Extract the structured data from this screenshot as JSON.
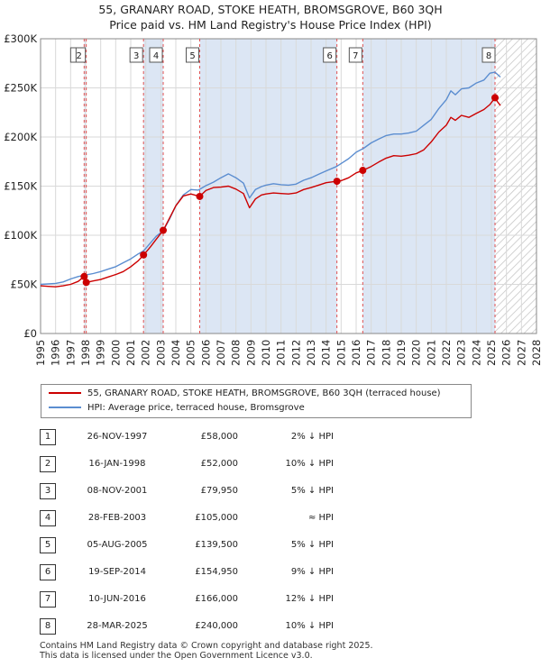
{
  "chart_data": {
    "type": "line",
    "title": "55, GRANARY ROAD, STOKE HEATH, BROMSGROVE, B60 3QH",
    "subtitle": "Price paid vs. HM Land Registry's House Price Index (HPI)",
    "xlim": [
      1995,
      2028
    ],
    "ylim": [
      0,
      300000
    ],
    "x_ticks": [
      1995,
      1996,
      1997,
      1998,
      1999,
      2000,
      2001,
      2002,
      2003,
      2004,
      2005,
      2006,
      2007,
      2008,
      2009,
      2010,
      2011,
      2012,
      2013,
      2014,
      2015,
      2016,
      2017,
      2018,
      2019,
      2020,
      2021,
      2022,
      2023,
      2024,
      2025,
      2026,
      2027,
      2028
    ],
    "y_ticks": [
      {
        "value": 0,
        "label": "£0"
      },
      {
        "value": 50000,
        "label": "£50K"
      },
      {
        "value": 100000,
        "label": "£100K"
      },
      {
        "value": 150000,
        "label": "£150K"
      },
      {
        "value": 200000,
        "label": "£200K"
      },
      {
        "value": 250000,
        "label": "£250K"
      },
      {
        "value": 300000,
        "label": "£300K"
      }
    ],
    "forecast_start": 2025.25,
    "series": [
      {
        "name": "55, GRANARY ROAD, STOKE HEATH, BROMSGROVE, B60 3QH (terraced house)",
        "color": "#cc0000",
        "x": [
          1995.0,
          1995.5,
          1996.0,
          1996.5,
          1997.0,
          1997.5,
          1997.9,
          1998.04,
          1998.5,
          1999.0,
          1999.5,
          2000.0,
          2000.5,
          2001.0,
          2001.5,
          2001.85,
          2002.3,
          2002.7,
          2003.16,
          2003.6,
          2004.0,
          2004.5,
          2005.0,
          2005.59,
          2006.0,
          2006.5,
          2007.0,
          2007.5,
          2008.0,
          2008.5,
          2008.9,
          2009.3,
          2009.7,
          2010.0,
          2010.5,
          2011.0,
          2011.5,
          2012.0,
          2012.5,
          2013.0,
          2013.5,
          2014.0,
          2014.72,
          2015.0,
          2015.5,
          2016.0,
          2016.44,
          2017.0,
          2017.5,
          2018.0,
          2018.5,
          2019.0,
          2019.5,
          2020.0,
          2020.5,
          2021.0,
          2021.5,
          2022.0,
          2022.3,
          2022.6,
          2023.0,
          2023.5,
          2024.0,
          2024.5,
          2024.9,
          2025.24,
          2025.4,
          2025.6
        ],
        "y": [
          48500,
          48000,
          47500,
          48500,
          50000,
          53000,
          58000,
          52000,
          53500,
          55000,
          57500,
          60000,
          63000,
          68000,
          74000,
          79950,
          88000,
          96000,
          105000,
          118000,
          130000,
          140000,
          142000,
          139500,
          145500,
          148500,
          149000,
          150000,
          147000,
          142500,
          128000,
          137000,
          141000,
          142000,
          143000,
          142500,
          142000,
          143000,
          146500,
          148500,
          151000,
          153500,
          154950,
          155500,
          158500,
          163500,
          166000,
          170000,
          174500,
          178500,
          181000,
          180500,
          181500,
          183000,
          187000,
          195000,
          205000,
          212000,
          220000,
          217000,
          222000,
          220000,
          224000,
          228000,
          233000,
          240000,
          236000,
          232000
        ]
      },
      {
        "name": "HPI: Average price, terraced house, Bromsgrove",
        "color": "#5b8dd0",
        "x": [
          1995.0,
          1995.5,
          1996.0,
          1996.5,
          1997.0,
          1997.5,
          1998.0,
          1998.5,
          1999.0,
          1999.5,
          2000.0,
          2000.5,
          2001.0,
          2001.5,
          2001.85,
          2002.3,
          2002.7,
          2003.16,
          2003.6,
          2004.0,
          2004.5,
          2005.0,
          2005.5,
          2006.0,
          2006.5,
          2007.0,
          2007.5,
          2008.0,
          2008.5,
          2008.9,
          2009.3,
          2009.7,
          2010.0,
          2010.5,
          2011.0,
          2011.5,
          2012.0,
          2012.5,
          2013.0,
          2013.5,
          2014.0,
          2014.7,
          2015.0,
          2015.5,
          2016.0,
          2016.5,
          2017.0,
          2017.5,
          2018.0,
          2018.5,
          2019.0,
          2019.5,
          2020.0,
          2020.5,
          2021.0,
          2021.5,
          2022.0,
          2022.3,
          2022.6,
          2023.0,
          2023.5,
          2024.0,
          2024.5,
          2024.9,
          2025.24,
          2025.6
        ],
        "y": [
          50000,
          50500,
          51000,
          52500,
          55500,
          58000,
          59500,
          61000,
          63000,
          65500,
          68000,
          72000,
          76000,
          81000,
          84000,
          92000,
          99000,
          104500,
          117000,
          130000,
          141000,
          146500,
          146000,
          150500,
          154000,
          158500,
          162500,
          158500,
          153000,
          138000,
          146500,
          149500,
          151000,
          152500,
          151500,
          151000,
          152000,
          156000,
          158500,
          162000,
          165500,
          170000,
          173000,
          178000,
          184500,
          188500,
          194000,
          198000,
          201500,
          203000,
          203000,
          204000,
          206000,
          212000,
          218000,
          229000,
          238000,
          247000,
          243000,
          249000,
          250000,
          255000,
          258000,
          265000,
          266000,
          261000
        ]
      }
    ],
    "transactions": [
      {
        "n": "1",
        "x": 1997.9,
        "date": "26-NOV-1997",
        "price": "£58,000",
        "value": 58000,
        "hpi": "2% ↓ HPI"
      },
      {
        "n": "2",
        "x": 1998.04,
        "date": "16-JAN-1998",
        "price": "£52,000",
        "value": 52000,
        "hpi": "10% ↓ HPI"
      },
      {
        "n": "3",
        "x": 2001.85,
        "date": "08-NOV-2001",
        "price": "£79,950",
        "value": 79950,
        "hpi": "5% ↓ HPI"
      },
      {
        "n": "4",
        "x": 2003.16,
        "date": "28-FEB-2003",
        "price": "£105,000",
        "value": 105000,
        "hpi": "≈ HPI"
      },
      {
        "n": "5",
        "x": 2005.59,
        "date": "05-AUG-2005",
        "price": "£139,500",
        "value": 139500,
        "hpi": "5% ↓ HPI"
      },
      {
        "n": "6",
        "x": 2014.72,
        "date": "19-SEP-2014",
        "price": "£154,950",
        "value": 154950,
        "hpi": "9% ↓ HPI"
      },
      {
        "n": "7",
        "x": 2016.44,
        "date": "10-JUN-2016",
        "price": "£166,000",
        "value": 166000,
        "hpi": "12% ↓ HPI"
      },
      {
        "n": "8",
        "x": 2025.24,
        "date": "28-MAR-2025",
        "price": "£240,000",
        "value": 240000,
        "hpi": "10% ↓ HPI"
      }
    ],
    "shaded_periods": [
      [
        1997.9,
        1998.04
      ],
      [
        2001.85,
        2003.16
      ],
      [
        2005.59,
        2014.72
      ],
      [
        2016.44,
        2025.24
      ]
    ],
    "chart_labels": [
      "2",
      "3",
      "4",
      "5",
      "6",
      "7",
      "8"
    ]
  },
  "legend": {
    "property_label": "55, GRANARY ROAD, STOKE HEATH, BROMSGROVE, B60 3QH (terraced house)",
    "hpi_label": "HPI: Average price, terraced house, Bromsgrove"
  },
  "footer": {
    "line1": "Contains HM Land Registry data © Crown copyright and database right 2025.",
    "line2": "This data is licensed under the Open Government Licence v3.0."
  }
}
